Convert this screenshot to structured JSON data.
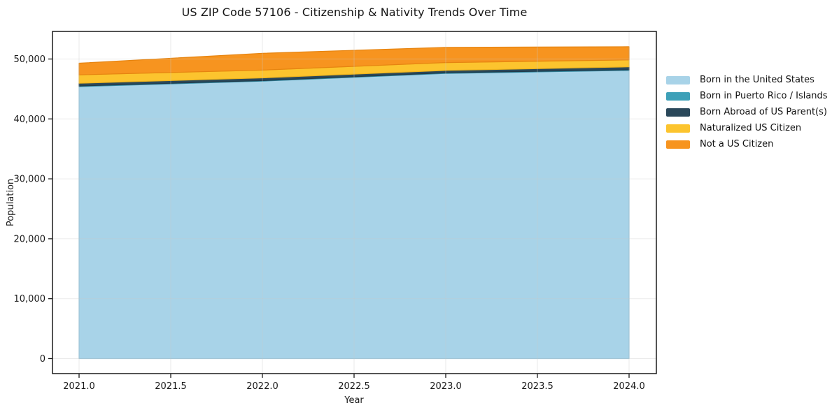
{
  "title": "US ZIP Code 57106 - Citizenship & Nativity Trends Over Time",
  "axes": {
    "xlabel": "Year",
    "ylabel": "Population",
    "xticks": [
      {
        "value": 2021.0,
        "label": "2021.0"
      },
      {
        "value": 2021.5,
        "label": "2021.5"
      },
      {
        "value": 2022.0,
        "label": "2022.0"
      },
      {
        "value": 2022.5,
        "label": "2022.5"
      },
      {
        "value": 2023.0,
        "label": "2023.0"
      },
      {
        "value": 2023.5,
        "label": "2023.5"
      },
      {
        "value": 2024.0,
        "label": "2024.0"
      }
    ],
    "yticks": [
      {
        "value": 0,
        "label": "0"
      },
      {
        "value": 10000,
        "label": "10,000"
      },
      {
        "value": 20000,
        "label": "20,000"
      },
      {
        "value": 30000,
        "label": "30,000"
      },
      {
        "value": 40000,
        "label": "40,000"
      },
      {
        "value": 50000,
        "label": "50,000"
      }
    ]
  },
  "chart_data": {
    "type": "area",
    "stacked": true,
    "title": "US ZIP Code 57106 - Citizenship & Nativity Trends Over Time",
    "xlabel": "Year",
    "ylabel": "Population",
    "grid": true,
    "legend_position": "outside-right",
    "xlim": [
      2020.85,
      2024.15
    ],
    "ylim": [
      -2600,
      54650
    ],
    "x": [
      2021,
      2022,
      2023,
      2024
    ],
    "series": [
      {
        "name": "Born in the United States",
        "color": "#a8d3e8",
        "edge_color": "#8ec4de",
        "values": [
          45400,
          46300,
          47600,
          48100
        ]
      },
      {
        "name": "Born in Puerto Rico / Islands",
        "color": "#3da0b8",
        "edge_color": "#338ba3",
        "values": [
          100,
          100,
          100,
          100
        ]
      },
      {
        "name": "Born Abroad of US Parent(s)",
        "color": "#2a485a",
        "edge_color": "#203a4a",
        "values": [
          450,
          450,
          400,
          500
        ]
      },
      {
        "name": "Naturalized US Citizen",
        "color": "#fcc42e",
        "edge_color": "#eeb31d",
        "values": [
          1400,
          1300,
          1300,
          1150
        ]
      },
      {
        "name": "Not a US Citizen",
        "color": "#f7941f",
        "edge_color": "#e68410",
        "values": [
          1950,
          2800,
          2550,
          2200
        ]
      }
    ],
    "totals_by_year": [
      49300,
      50950,
      51950,
      52050
    ]
  },
  "style": {
    "grid_color": "#c9c9c9",
    "spine_color": "#1a1a1a",
    "background": "#ffffff"
  }
}
